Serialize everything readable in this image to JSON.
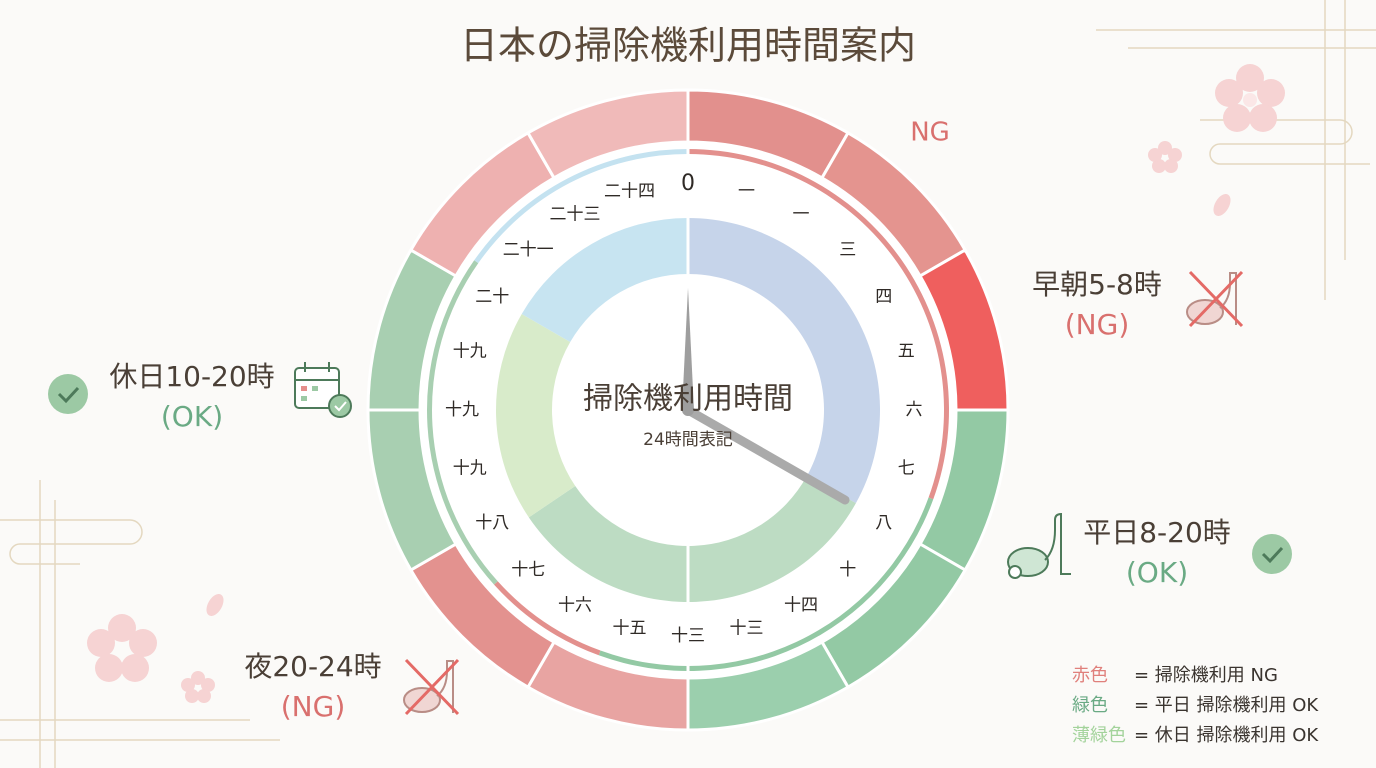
{
  "title": "日本の掃除機利用時間案内",
  "center": {
    "title": "掃除機利用時間",
    "subtitle": "24時間表記"
  },
  "ng_label": "NG",
  "hour_labels": [
    "0",
    "一",
    "一",
    "三",
    "四",
    "五",
    "六",
    "七",
    "八",
    "十",
    "十四",
    "十三",
    "十三",
    "十五",
    "十六",
    "十七",
    "十八",
    "十九",
    "十九",
    "十九",
    "二十",
    "二十一",
    "二十三",
    "二十四"
  ],
  "callouts": {
    "morning": {
      "label": "早朝5-8時",
      "status": "(NG)"
    },
    "weekday": {
      "label": "平日8-20時",
      "status": "(OK)"
    },
    "night": {
      "label": "夜20-24時",
      "status": "(NG)"
    },
    "holiday": {
      "label": "休日10-20時",
      "status": "(OK)"
    }
  },
  "legend": [
    {
      "color_name": "赤色",
      "text": "= 掃除機利用 NG"
    },
    {
      "color_name": "緑色",
      "text": "= 平日 掃除機利用 OK"
    },
    {
      "color_name": "薄緑色",
      "text": "= 休日 掃除機利用 OK"
    }
  ]
}
